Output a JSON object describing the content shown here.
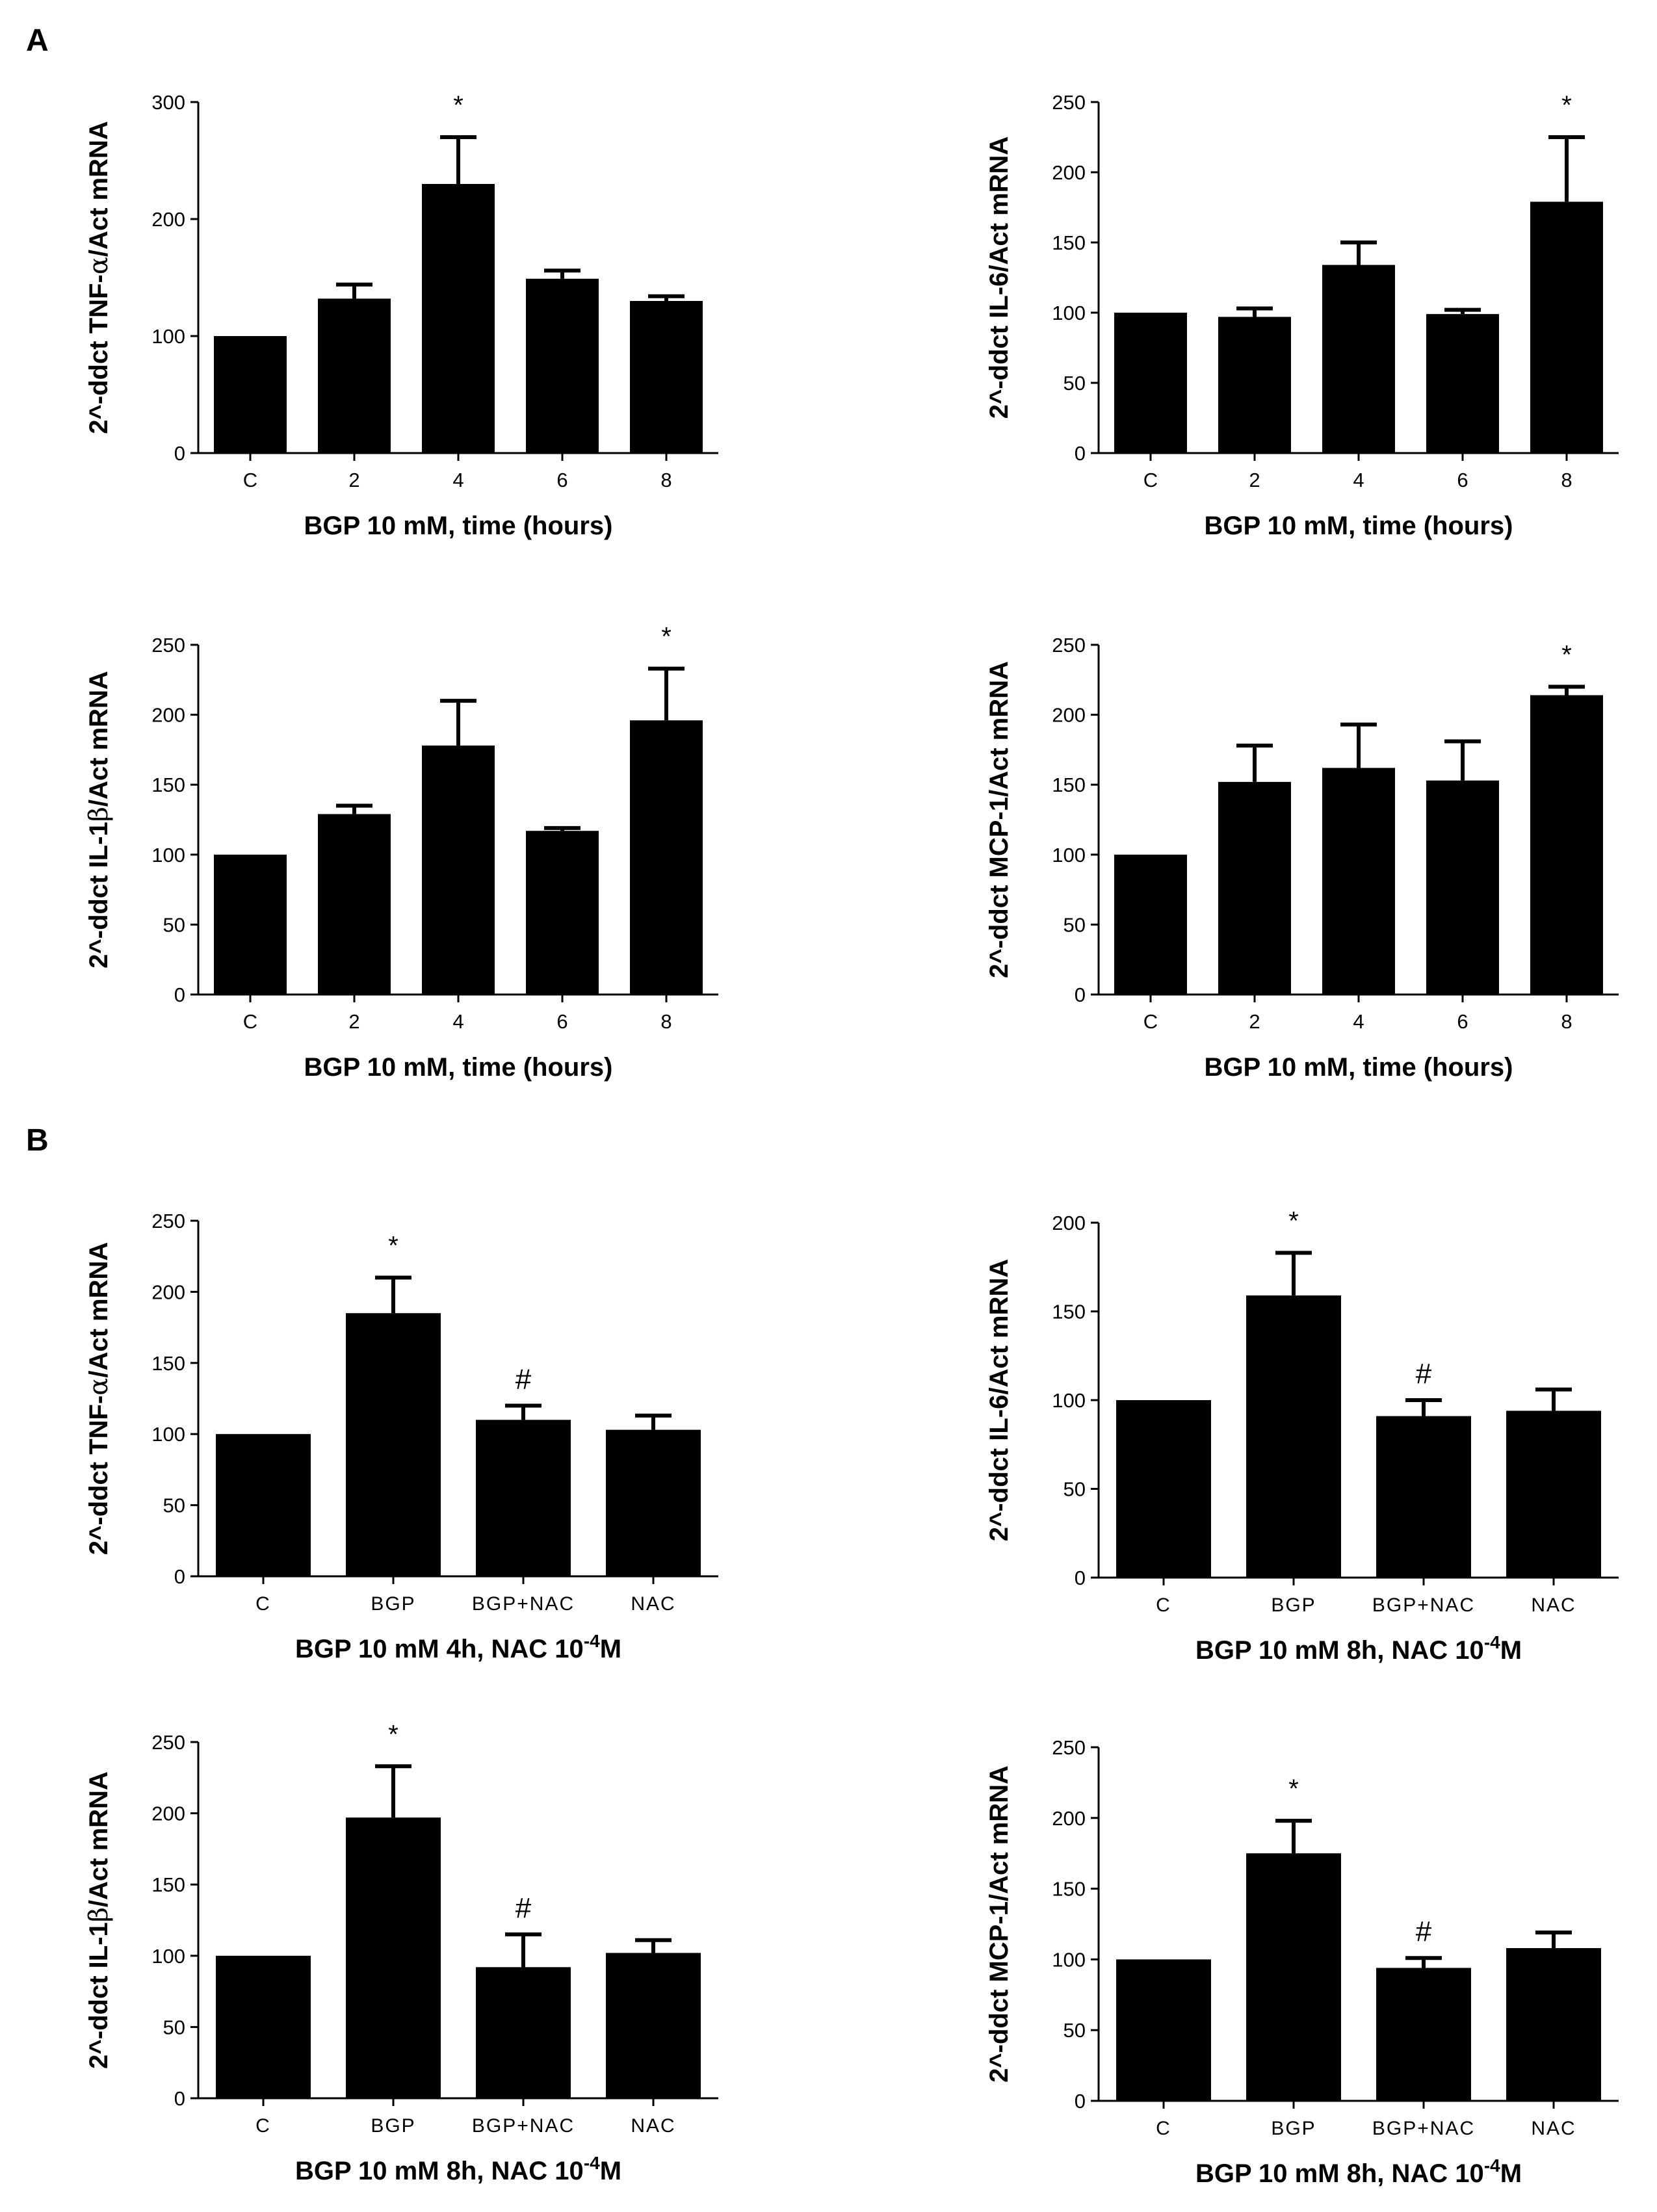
{
  "panel_labels": [
    "A",
    "B"
  ],
  "chart_data": [
    {
      "type": "bar",
      "panel": "A",
      "categories": [
        "C",
        "2",
        "4",
        "6",
        "8"
      ],
      "values": [
        100,
        132,
        230,
        149,
        130
      ],
      "errors": [
        0,
        12,
        40,
        7,
        4
      ],
      "markers": [
        "",
        "",
        "*",
        "",
        ""
      ],
      "ylim": [
        0,
        300
      ],
      "yticks": [
        0,
        100,
        200,
        300
      ],
      "ylabel_pre": "2^-ddct TNF-",
      "ylabel_greek": "α",
      "ylabel_post": "/Act mRNA",
      "xlabel": "BGP 10 mM, time (hours)"
    },
    {
      "type": "bar",
      "panel": "A",
      "categories": [
        "C",
        "2",
        "4",
        "6",
        "8"
      ],
      "values": [
        100,
        97,
        134,
        99,
        179
      ],
      "errors": [
        0,
        6,
        16,
        3,
        46
      ],
      "markers": [
        "",
        "",
        "",
        "",
        "*"
      ],
      "ylim": [
        0,
        250
      ],
      "yticks": [
        0,
        50,
        100,
        150,
        200,
        250
      ],
      "ylabel": "2^-ddct IL-6/Act mRNA",
      "xlabel": "BGP 10 mM, time (hours)"
    },
    {
      "type": "bar",
      "panel": "A",
      "categories": [
        "C",
        "2",
        "4",
        "6",
        "8"
      ],
      "values": [
        100,
        129,
        178,
        117,
        196
      ],
      "errors": [
        0,
        6,
        32,
        2,
        37
      ],
      "markers": [
        "",
        "",
        "",
        "",
        "*"
      ],
      "ylim": [
        0,
        250
      ],
      "yticks": [
        0,
        50,
        100,
        150,
        200,
        250
      ],
      "ylabel_pre": "2^-ddct IL-1",
      "ylabel_greek": "β",
      "ylabel_post": "/Act mRNA",
      "xlabel": "BGP 10 mM, time (hours)"
    },
    {
      "type": "bar",
      "panel": "A",
      "categories": [
        "C",
        "2",
        "4",
        "6",
        "8"
      ],
      "values": [
        100,
        152,
        162,
        153,
        214
      ],
      "errors": [
        0,
        26,
        31,
        28,
        6
      ],
      "markers": [
        "",
        "",
        "",
        "",
        "*"
      ],
      "ylim": [
        0,
        250
      ],
      "yticks": [
        0,
        50,
        100,
        150,
        200,
        250
      ],
      "ylabel": "2^-ddct MCP-1/Act mRNA",
      "xlabel": "BGP 10 mM, time (hours)"
    },
    {
      "type": "bar",
      "panel": "B",
      "categories": [
        "C",
        "BGP",
        "BGP+NAC",
        "NAC"
      ],
      "values": [
        100,
        185,
        110,
        103
      ],
      "errors": [
        0,
        25,
        10,
        10
      ],
      "markers": [
        "",
        "*",
        "#",
        ""
      ],
      "ylim": [
        0,
        250
      ],
      "yticks": [
        0,
        50,
        100,
        150,
        200,
        250
      ],
      "ylabel_pre": "2^-ddct TNF-",
      "ylabel_greek": "α",
      "ylabel_post": "/Act mRNA",
      "xlabel_pre": "BGP 10 mM 4h, NAC 10",
      "xlabel_sup": "-4",
      "xlabel_post": "M"
    },
    {
      "type": "bar",
      "panel": "B",
      "categories": [
        "C",
        "BGP",
        "BGP+NAC",
        "NAC"
      ],
      "values": [
        100,
        159,
        91,
        94
      ],
      "errors": [
        0,
        24,
        9,
        12
      ],
      "markers": [
        "",
        "*",
        "#",
        ""
      ],
      "ylim": [
        0,
        200
      ],
      "yticks": [
        0,
        50,
        100,
        150,
        200
      ],
      "ylabel": "2^-ddct IL-6/Act mRNA",
      "xlabel_pre": "BGP 10 mM 8h, NAC 10",
      "xlabel_sup": "-4",
      "xlabel_post": "M"
    },
    {
      "type": "bar",
      "panel": "B",
      "categories": [
        "C",
        "BGP",
        "BGP+NAC",
        "NAC"
      ],
      "values": [
        100,
        197,
        92,
        102
      ],
      "errors": [
        0,
        36,
        23,
        9
      ],
      "markers": [
        "",
        "*",
        "#",
        ""
      ],
      "ylim": [
        0,
        250
      ],
      "yticks": [
        0,
        50,
        100,
        150,
        200,
        250
      ],
      "ylabel_pre": "2^-ddct IL-1",
      "ylabel_greek": "β",
      "ylabel_post": "/Act mRNA",
      "xlabel_pre": "BGP 10 mM 8h, NAC 10",
      "xlabel_sup": "-4",
      "xlabel_post": "M"
    },
    {
      "type": "bar",
      "panel": "B",
      "categories": [
        "C",
        "BGP",
        "BGP+NAC",
        "NAC"
      ],
      "values": [
        100,
        175,
        94,
        108
      ],
      "errors": [
        0,
        23,
        7,
        11
      ],
      "markers": [
        "",
        "*",
        "#",
        ""
      ],
      "ylim": [
        0,
        250
      ],
      "yticks": [
        0,
        50,
        100,
        150,
        200,
        250
      ],
      "ylabel_pre": "2^-ddct MCP-1/Act mRNA",
      "xlabel_pre": "BGP 10 mM 8h, NAC 10",
      "xlabel_sup": "-4",
      "xlabel_post": "M"
    }
  ]
}
